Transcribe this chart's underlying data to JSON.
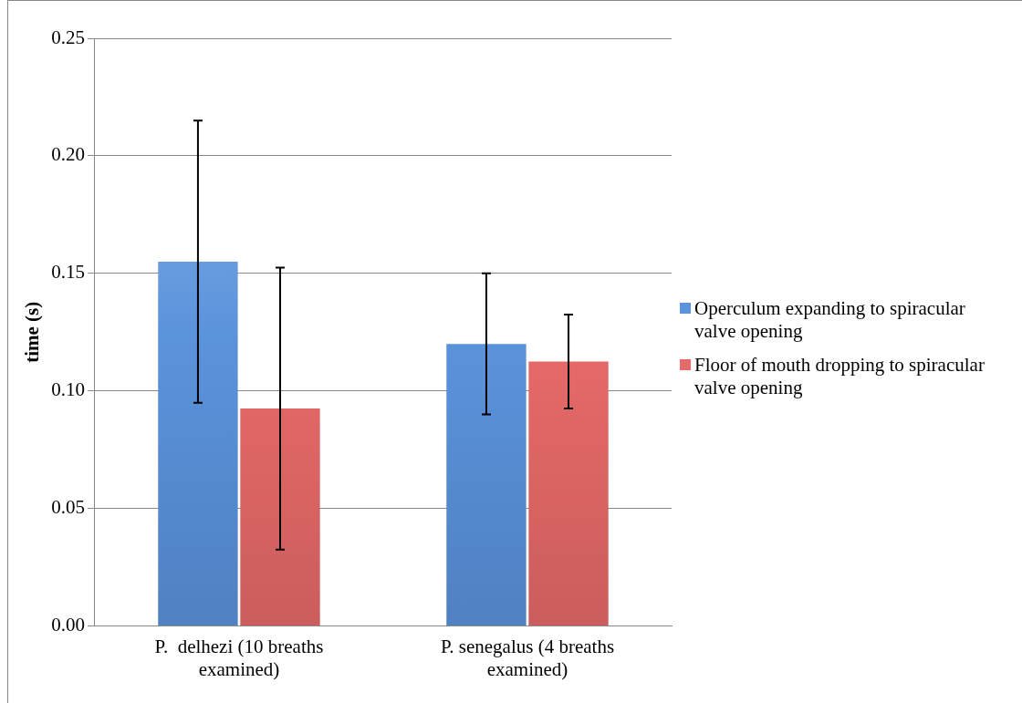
{
  "chart_data": {
    "type": "bar",
    "ylabel": "time (s)",
    "categories": [
      "P.  delhezi (10 breaths examined)",
      "P. senegalus (4 breaths examined)"
    ],
    "series": [
      {
        "name": "Operculum expanding to spiracular valve opening",
        "color": "#5b93dc",
        "values": [
          0.155,
          0.12
        ],
        "errors": [
          0.06,
          0.03
        ]
      },
      {
        "name": "Floor of mouth dropping to spiracular valve opening",
        "color": "#e86a6a",
        "values": [
          0.0925,
          0.1125
        ],
        "errors": [
          0.06,
          0.02
        ]
      }
    ],
    "ylim": [
      0,
      0.25
    ],
    "yticks": [
      {
        "value": 0,
        "label": "0.00"
      },
      {
        "value": 0.05,
        "label": "0.05"
      },
      {
        "value": 0.1,
        "label": "0.10"
      },
      {
        "value": 0.15,
        "label": "0.15"
      },
      {
        "value": 0.2,
        "label": "0.20"
      },
      {
        "value": 0.25,
        "label": "0.25"
      }
    ],
    "grid": "y",
    "legend": "right"
  }
}
